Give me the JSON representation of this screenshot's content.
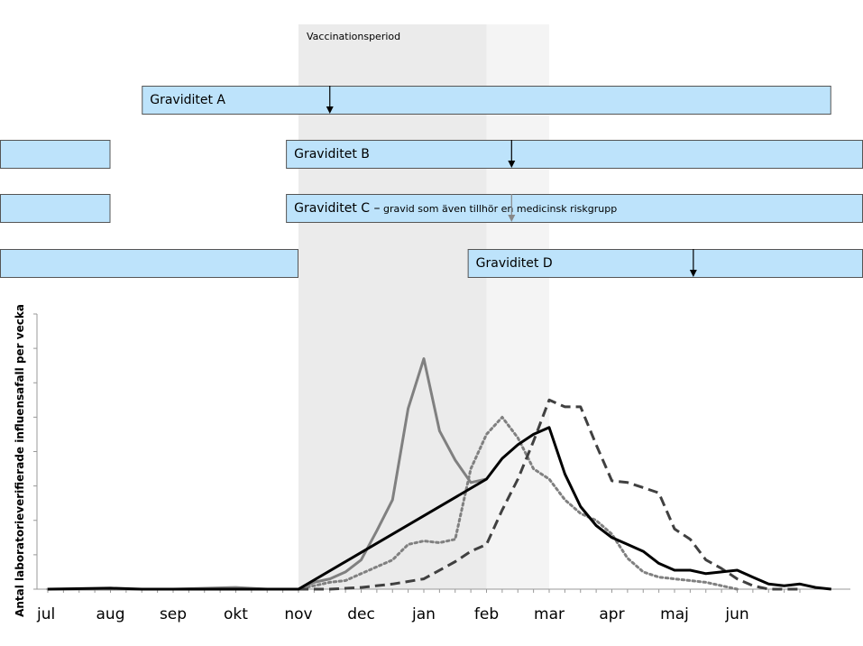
{
  "chart_data": {
    "type": "line",
    "title": "",
    "ylabel": "Antal laboratorieverifierade influensafall per vecka",
    "xlabel": "",
    "months": [
      "jul",
      "aug",
      "sep",
      "okt",
      "nov",
      "dec",
      "jan",
      "feb",
      "mar",
      "apr",
      "maj",
      "jun"
    ],
    "ylim": [
      0,
      8
    ],
    "ytick_count": 8,
    "vaccination_period": {
      "label": "Vaccinationsperiod",
      "main": [
        4.0,
        7.0
      ],
      "extended": [
        7.0,
        8.0
      ],
      "main_color": "#ebebeb",
      "extended_color": "#f4f4f4"
    },
    "pregnancies": [
      {
        "label": "Graviditet A",
        "note": "",
        "segments": [
          [
            1.5,
            12.5
          ]
        ],
        "marker": 4.5,
        "row": 0
      },
      {
        "label": "Graviditet B",
        "note": "",
        "segments": [
          [
            -1.0,
            1.0
          ],
          [
            3.8,
            13.5
          ]
        ],
        "marker": 7.4,
        "row": 1
      },
      {
        "label": "Graviditet C –",
        "note": "gravid som även tillhör en medicinsk riskgrupp",
        "segments": [
          [
            -1.0,
            1.0
          ],
          [
            3.8,
            13.5
          ]
        ],
        "marker": 7.4,
        "row": 2
      },
      {
        "label": "Graviditet D",
        "note": "",
        "segments": [
          [
            -1.0,
            4.0
          ],
          [
            6.7,
            13.5
          ]
        ],
        "marker": 10.3,
        "row": 3
      }
    ],
    "bar_color": "#bde3fb",
    "series": [
      {
        "color": "#808080",
        "dash": "solid",
        "points": [
          [
            0,
            0
          ],
          [
            1,
            0
          ],
          [
            2,
            0
          ],
          [
            3,
            0.05
          ],
          [
            3.5,
            0
          ],
          [
            4,
            0
          ],
          [
            4.25,
            0.2
          ],
          [
            4.5,
            0.3
          ],
          [
            4.75,
            0.5
          ],
          [
            5,
            0.85
          ],
          [
            5.25,
            1.7
          ],
          [
            5.5,
            2.6
          ],
          [
            5.75,
            5.25
          ],
          [
            6,
            6.7
          ],
          [
            6.25,
            4.6
          ],
          [
            6.5,
            3.75
          ],
          [
            6.75,
            3.1
          ],
          [
            7,
            3.2
          ]
        ]
      },
      {
        "color": "#808080",
        "dash": "dotted",
        "points": [
          [
            0,
            0
          ],
          [
            1,
            0
          ],
          [
            2,
            0
          ],
          [
            3,
            0
          ],
          [
            4,
            0
          ],
          [
            4.25,
            0.1
          ],
          [
            4.5,
            0.2
          ],
          [
            4.75,
            0.25
          ],
          [
            5,
            0.45
          ],
          [
            5.25,
            0.65
          ],
          [
            5.5,
            0.85
          ],
          [
            5.75,
            1.3
          ],
          [
            6,
            1.4
          ],
          [
            6.25,
            1.35
          ],
          [
            6.5,
            1.45
          ],
          [
            6.75,
            3.5
          ],
          [
            7,
            4.5
          ],
          [
            7.25,
            5.0
          ],
          [
            7.5,
            4.4
          ],
          [
            7.75,
            3.5
          ],
          [
            8,
            3.2
          ],
          [
            8.25,
            2.6
          ],
          [
            8.5,
            2.2
          ],
          [
            8.75,
            2.0
          ],
          [
            9,
            1.6
          ],
          [
            9.25,
            0.9
          ],
          [
            9.5,
            0.5
          ],
          [
            9.75,
            0.35
          ],
          [
            10,
            0.3
          ],
          [
            10.25,
            0.25
          ],
          [
            10.5,
            0.2
          ],
          [
            10.75,
            0.1
          ],
          [
            11,
            0
          ]
        ]
      },
      {
        "color": "#404040",
        "dash": "dashed",
        "points": [
          [
            4,
            0
          ],
          [
            4.5,
            0
          ],
          [
            5,
            0.05
          ],
          [
            5.5,
            0.15
          ],
          [
            6,
            0.3
          ],
          [
            6.5,
            0.8
          ],
          [
            6.75,
            1.1
          ],
          [
            7,
            1.3
          ],
          [
            7.25,
            2.3
          ],
          [
            7.5,
            3.2
          ],
          [
            7.75,
            4.3
          ],
          [
            8,
            5.5
          ],
          [
            8.25,
            5.3
          ],
          [
            8.5,
            5.3
          ],
          [
            8.75,
            4.2
          ],
          [
            9,
            3.15
          ],
          [
            9.25,
            3.1
          ],
          [
            9.5,
            2.95
          ],
          [
            9.75,
            2.8
          ],
          [
            10,
            1.75
          ],
          [
            10.25,
            1.45
          ],
          [
            10.5,
            0.85
          ],
          [
            10.75,
            0.6
          ],
          [
            11,
            0.3
          ],
          [
            11.25,
            0.1
          ],
          [
            11.5,
            0
          ],
          [
            12,
            0
          ]
        ]
      },
      {
        "color": "#000000",
        "dash": "solid",
        "points": [
          [
            0,
            0
          ],
          [
            1,
            0.03
          ],
          [
            1.5,
            0
          ],
          [
            2,
            0
          ],
          [
            3,
            0
          ],
          [
            3.5,
            0
          ],
          [
            4,
            0
          ],
          [
            7,
            3.2
          ],
          [
            7.25,
            3.8
          ],
          [
            7.5,
            4.2
          ],
          [
            7.75,
            4.5
          ],
          [
            8,
            4.7
          ],
          [
            8.25,
            3.35
          ],
          [
            8.5,
            2.4
          ],
          [
            8.75,
            1.85
          ],
          [
            9,
            1.5
          ],
          [
            9.25,
            1.3
          ],
          [
            9.5,
            1.1
          ],
          [
            9.75,
            0.75
          ],
          [
            10,
            0.55
          ],
          [
            10.25,
            0.55
          ],
          [
            10.5,
            0.45
          ],
          [
            10.75,
            0.5
          ],
          [
            11,
            0.55
          ],
          [
            11.25,
            0.35
          ],
          [
            11.5,
            0.15
          ],
          [
            11.75,
            0.1
          ],
          [
            12,
            0.15
          ],
          [
            12.25,
            0.05
          ],
          [
            12.5,
            0
          ]
        ]
      }
    ]
  }
}
